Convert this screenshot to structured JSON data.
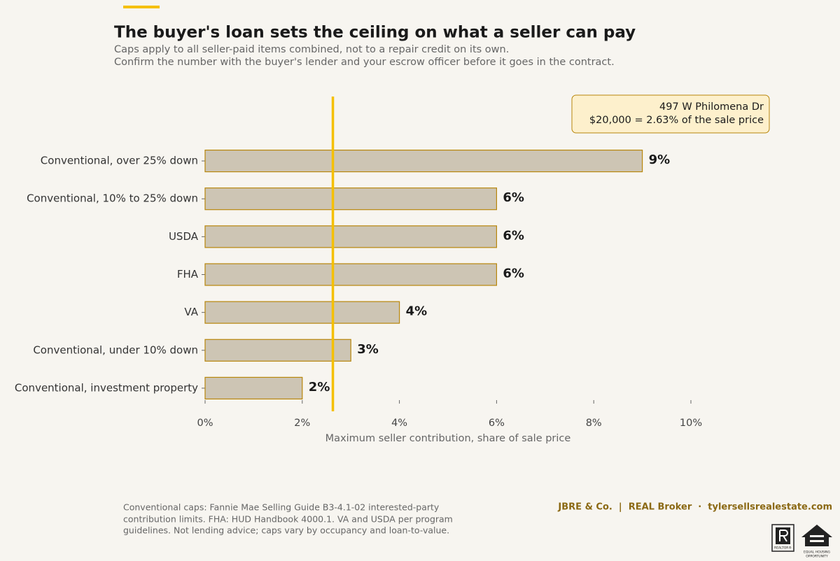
{
  "chart_data": {
    "type": "bar",
    "orientation": "horizontal",
    "title": "The buyer's loan sets the ceiling on what a seller can pay",
    "subtitle": [
      "Caps apply to all seller-paid items combined, not to a repair credit on its own.",
      "Confirm the number with the buyer's lender and your escrow officer before it goes in the contract."
    ],
    "categories": [
      "Conventional, over 25% down",
      "Conventional, 10% to 25% down",
      "USDA",
      "FHA",
      "VA",
      "Conventional, under 10% down",
      "Conventional, investment property"
    ],
    "values": [
      9,
      6,
      6,
      6,
      4,
      3,
      2
    ],
    "value_labels": [
      "9%",
      "6%",
      "6%",
      "6%",
      "4%",
      "3%",
      "2%"
    ],
    "color": "#cdc5b4",
    "edge_color": "#b8860b",
    "xlim": [
      0,
      10
    ],
    "xticks": [
      {
        "value": 0,
        "label": "0%"
      },
      {
        "value": 2,
        "label": "2%"
      },
      {
        "value": 4,
        "label": "4%"
      },
      {
        "value": 6,
        "label": "6%"
      },
      {
        "value": 8,
        "label": "8%"
      },
      {
        "value": 10,
        "label": "10%"
      }
    ],
    "xlabel": "Maximum seller contribution, share of sale price",
    "reference_line": {
      "value": 2.63,
      "color": "#f5c000"
    },
    "annotation": [
      "497 W Philomena Dr",
      "$20,000 = 2.63% of the sale price"
    ]
  },
  "footer": {
    "note": [
      "Conventional caps: Fannie Mae Selling Guide B3-4.1-02 interested-party",
      "contribution limits. FHA: HUD Handbook 4000.1. VA and USDA per program",
      "guidelines. Not lending advice; caps vary by occupancy and loan-to-value."
    ],
    "brand": "JBRE & Co.  |  REAL Broker  ·  tylersellsrealestate.com",
    "logos": [
      "REALTOR®",
      "EQUAL HOUSING",
      "OPPORTUNITY"
    ]
  }
}
